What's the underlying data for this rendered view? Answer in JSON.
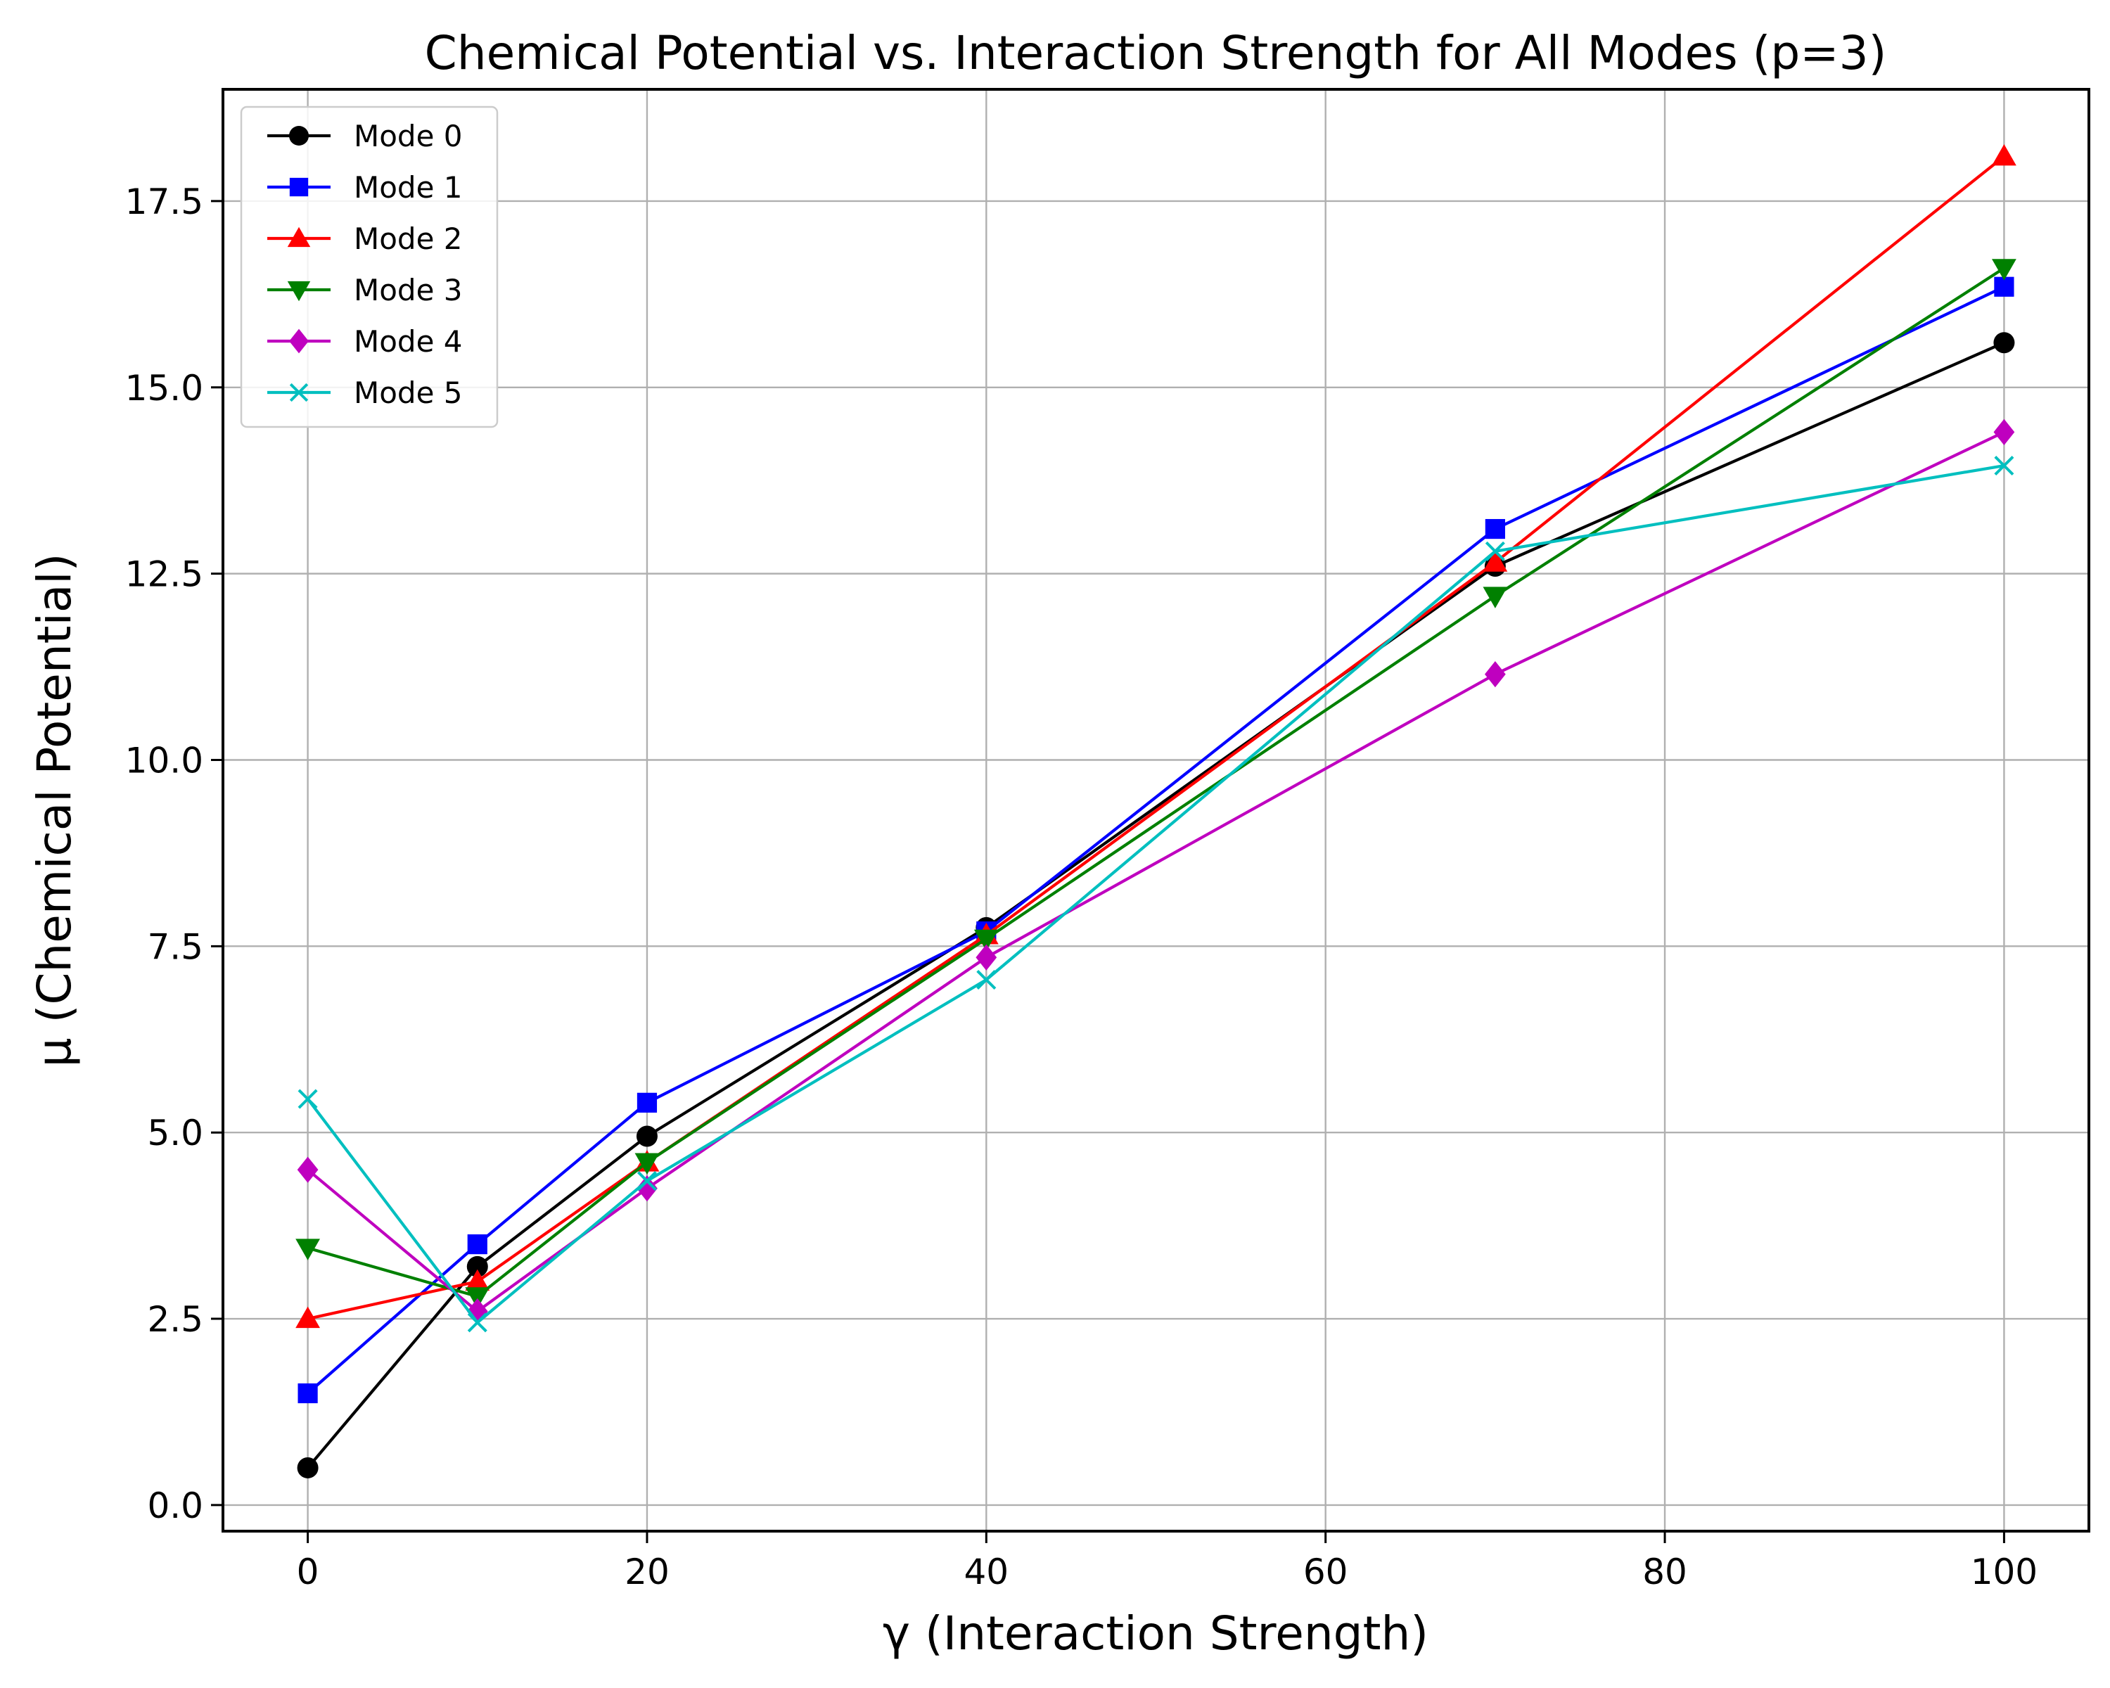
{
  "chart_data": {
    "type": "line",
    "title": "Chemical Potential vs. Interaction Strength for All Modes (p=3)",
    "xlabel": "γ (Interaction Strength)",
    "ylabel": "μ (Chemical Potential)",
    "x": [
      0,
      10,
      20,
      40,
      70,
      100
    ],
    "xlim": [
      -5,
      105
    ],
    "ylim": [
      -0.35,
      19.0
    ],
    "xticks": [
      0,
      20,
      40,
      60,
      80,
      100
    ],
    "xtick_labels": [
      "0",
      "20",
      "40",
      "60",
      "80",
      "100"
    ],
    "yticks": [
      0,
      2.5,
      5,
      7.5,
      10,
      12.5,
      15,
      17.5
    ],
    "ytick_labels": [
      "0.0",
      "2.5",
      "5.0",
      "7.5",
      "10.0",
      "12.5",
      "15.0",
      "17.5"
    ],
    "grid": true,
    "legend_position": "top-left",
    "series": [
      {
        "name": "Mode 0",
        "color": "#000000",
        "marker": "circle",
        "values": [
          0.5,
          3.2,
          4.95,
          7.75,
          12.6,
          15.6
        ]
      },
      {
        "name": "Mode 1",
        "color": "#0000ff",
        "marker": "square",
        "values": [
          1.5,
          3.5,
          5.4,
          7.7,
          13.1,
          16.35
        ]
      },
      {
        "name": "Mode 2",
        "color": "#ff0000",
        "marker": "triangle-up",
        "values": [
          2.5,
          3.0,
          4.6,
          7.65,
          12.65,
          18.1
        ]
      },
      {
        "name": "Mode 3",
        "color": "#008000",
        "marker": "triangle-down",
        "values": [
          3.45,
          2.8,
          4.6,
          7.6,
          12.2,
          16.6
        ]
      },
      {
        "name": "Mode 4",
        "color": "#bf00bf",
        "marker": "diamond",
        "values": [
          4.5,
          2.6,
          4.25,
          7.35,
          11.15,
          14.4
        ]
      },
      {
        "name": "Mode 5",
        "color": "#00bfbf",
        "marker": "x",
        "values": [
          5.45,
          2.45,
          4.35,
          7.05,
          12.8,
          13.95
        ]
      }
    ]
  }
}
